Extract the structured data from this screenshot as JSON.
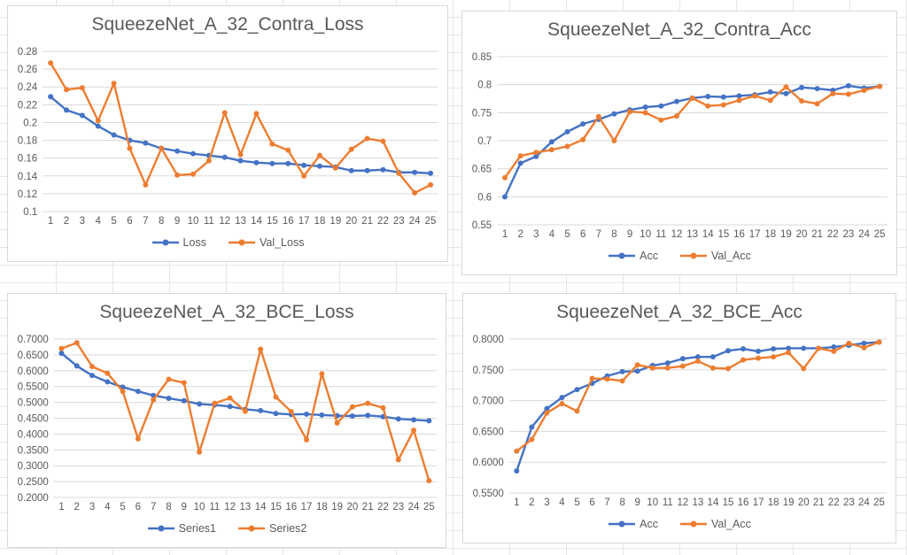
{
  "colors": {
    "series_blue": "#4472C4",
    "series_orange": "#ED7D31",
    "plot_gridline": "#D9D9D9",
    "axis_text": "#595959",
    "title_text": "#595959",
    "chart_border": "#D8D8D8",
    "sheet_gridline": "#E3E5E8"
  },
  "chart_data": [
    {
      "type": "line",
      "title": "SqueezeNet_A_32_Contra_Loss",
      "x": [
        1,
        2,
        3,
        4,
        5,
        6,
        7,
        8,
        9,
        10,
        11,
        12,
        13,
        14,
        15,
        16,
        17,
        18,
        19,
        20,
        21,
        22,
        23,
        24,
        25
      ],
      "ylim": [
        0.1,
        0.28
      ],
      "yticks": [
        "0.28",
        "0.26",
        "0.24",
        "0.22",
        "0.2",
        "0.18",
        "0.16",
        "0.14",
        "0.12",
        "0.1"
      ],
      "grid": "horizontal",
      "legend_position": "bottom",
      "series": [
        {
          "name": "Loss",
          "color": "#4472C4",
          "values": [
            0.229,
            0.214,
            0.208,
            0.196,
            0.186,
            0.18,
            0.177,
            0.171,
            0.168,
            0.165,
            0.163,
            0.161,
            0.157,
            0.155,
            0.154,
            0.154,
            0.152,
            0.151,
            0.15,
            0.146,
            0.146,
            0.147,
            0.144,
            0.144,
            0.143
          ]
        },
        {
          "name": "Val_Loss",
          "color": "#ED7D31",
          "values": [
            0.267,
            0.237,
            0.239,
            0.202,
            0.244,
            0.171,
            0.13,
            0.171,
            0.141,
            0.142,
            0.157,
            0.211,
            0.164,
            0.21,
            0.176,
            0.169,
            0.14,
            0.163,
            0.149,
            0.17,
            0.182,
            0.179,
            0.143,
            0.121,
            0.13
          ]
        }
      ]
    },
    {
      "type": "line",
      "title": "SqueezeNet_A_32_Contra_Acc",
      "x": [
        1,
        2,
        3,
        4,
        5,
        6,
        7,
        8,
        9,
        10,
        11,
        12,
        13,
        14,
        15,
        16,
        17,
        18,
        19,
        20,
        21,
        22,
        23,
        24,
        25
      ],
      "ylim": [
        0.55,
        0.85
      ],
      "yticks": [
        "0.85",
        "0.8",
        "0.75",
        "0.7",
        "0.65",
        "0.6",
        "0.55"
      ],
      "grid": "horizontal",
      "legend_position": "bottom",
      "series": [
        {
          "name": "Acc",
          "color": "#4472C4",
          "values": [
            0.6,
            0.66,
            0.672,
            0.698,
            0.716,
            0.73,
            0.738,
            0.748,
            0.755,
            0.76,
            0.762,
            0.77,
            0.776,
            0.779,
            0.778,
            0.78,
            0.782,
            0.787,
            0.784,
            0.795,
            0.793,
            0.79,
            0.798,
            0.794,
            0.797
          ]
        },
        {
          "name": "Val_Acc",
          "color": "#ED7D31",
          "values": [
            0.634,
            0.673,
            0.679,
            0.684,
            0.69,
            0.702,
            0.743,
            0.7,
            0.752,
            0.75,
            0.737,
            0.744,
            0.776,
            0.762,
            0.764,
            0.772,
            0.78,
            0.772,
            0.796,
            0.771,
            0.766,
            0.784,
            0.783,
            0.79,
            0.797
          ]
        }
      ]
    },
    {
      "type": "line",
      "title": "SqueezeNet_A_32_BCE_Loss",
      "x": [
        1,
        2,
        3,
        4,
        5,
        6,
        7,
        8,
        9,
        10,
        11,
        12,
        13,
        14,
        15,
        16,
        17,
        18,
        19,
        20,
        21,
        22,
        23,
        24,
        25
      ],
      "ylim": [
        0.2,
        0.7
      ],
      "yticks": [
        "0.7000",
        "0.6500",
        "0.6000",
        "0.5500",
        "0.5000",
        "0.4500",
        "0.4000",
        "0.3500",
        "0.3000",
        "0.2500",
        "0.2000"
      ],
      "grid": "horizontal",
      "legend_position": "bottom",
      "series": [
        {
          "name": "Series1",
          "color": "#4472C4",
          "values": [
            0.655,
            0.615,
            0.585,
            0.565,
            0.548,
            0.535,
            0.522,
            0.513,
            0.505,
            0.495,
            0.492,
            0.487,
            0.478,
            0.474,
            0.465,
            0.462,
            0.463,
            0.46,
            0.458,
            0.457,
            0.459,
            0.455,
            0.448,
            0.445,
            0.442
          ]
        },
        {
          "name": "Series2",
          "color": "#ED7D31",
          "values": [
            0.67,
            0.688,
            0.613,
            0.592,
            0.535,
            0.385,
            0.508,
            0.573,
            0.562,
            0.343,
            0.497,
            0.514,
            0.472,
            0.668,
            0.517,
            0.471,
            0.382,
            0.59,
            0.435,
            0.486,
            0.497,
            0.483,
            0.319,
            0.412,
            0.253
          ]
        }
      ]
    },
    {
      "type": "line",
      "title": "SqueezeNet_A_32_BCE_Acc",
      "x": [
        1,
        2,
        3,
        4,
        5,
        6,
        7,
        8,
        9,
        10,
        11,
        12,
        13,
        14,
        15,
        16,
        17,
        18,
        19,
        20,
        21,
        22,
        23,
        24,
        25
      ],
      "ylim": [
        0.55,
        0.8
      ],
      "yticks": [
        "0.8000",
        "0.7500",
        "0.7000",
        "0.6500",
        "0.6000",
        "0.5500"
      ],
      "grid": "horizontal",
      "legend_position": "bottom",
      "series": [
        {
          "name": "Acc",
          "color": "#4472C4",
          "values": [
            0.586,
            0.657,
            0.687,
            0.705,
            0.718,
            0.728,
            0.74,
            0.747,
            0.748,
            0.757,
            0.761,
            0.768,
            0.771,
            0.771,
            0.781,
            0.784,
            0.78,
            0.784,
            0.785,
            0.785,
            0.785,
            0.787,
            0.79,
            0.793,
            0.795
          ]
        },
        {
          "name": "Val_Acc",
          "color": "#ED7D31",
          "values": [
            0.618,
            0.637,
            0.68,
            0.695,
            0.683,
            0.736,
            0.735,
            0.732,
            0.758,
            0.753,
            0.753,
            0.756,
            0.764,
            0.753,
            0.752,
            0.766,
            0.769,
            0.771,
            0.778,
            0.752,
            0.785,
            0.78,
            0.793,
            0.786,
            0.795
          ]
        }
      ]
    }
  ]
}
